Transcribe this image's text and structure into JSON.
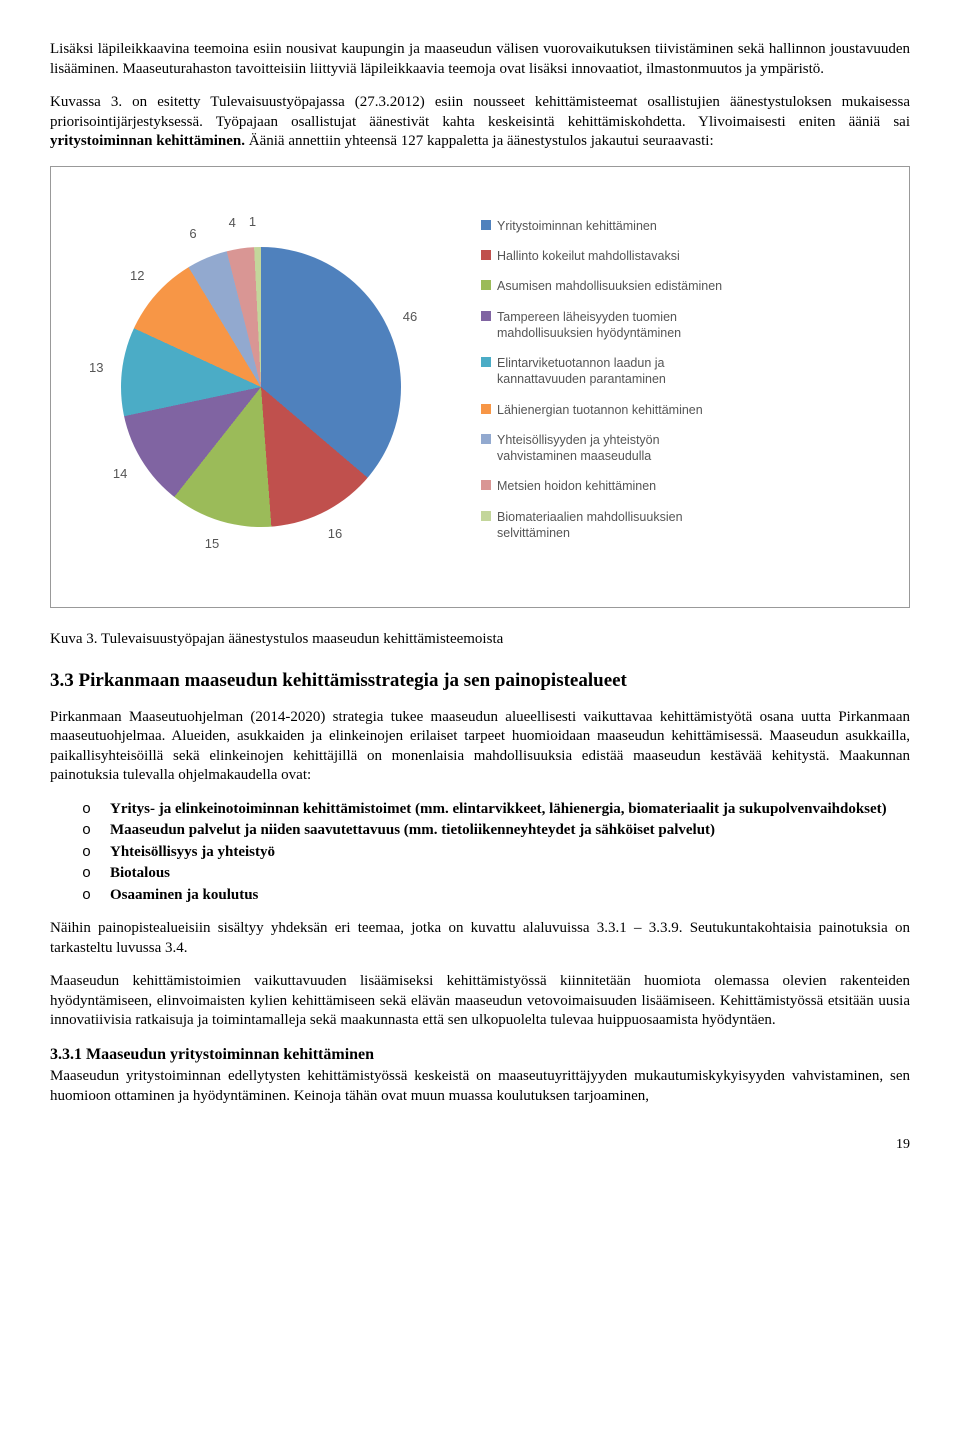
{
  "intro_para": "Lisäksi läpileikkaavina teemoina esiin nousivat kaupungin ja maaseudun välisen vuorovaikutuksen tiivistäminen sekä hallinnon joustavuuden lisääminen. Maaseuturahaston tavoitteisiin liittyviä läpileikkaavia teemoja ovat lisäksi innovaatiot, ilmastonmuutos ja ympäristö.",
  "intro_para2_pre": "Kuvassa 3. on esitetty Tulevaisuustyöpajassa (27.3.2012) esiin nousseet kehittämisteemat osallistujien äänestystuloksen mukaisessa priorisointijärjestyksessä. Työpajaan osallistujat äänestivät kahta keskeisintä kehittämiskohdetta. Ylivoimaisesti eniten ääniä sai ",
  "intro_para2_bold": "yritystoiminnan kehittäminen.",
  "intro_para2_post": " Ääniä annettiin yhteensä 127 kappaletta ja äänestystulos jakautui seuraavasti:",
  "chart": {
    "type": "pie",
    "total": 127,
    "background_color": "#ffffff",
    "border_color": "#999999",
    "label_font_family": "Arial",
    "label_fontsize": 13,
    "label_color": "#555555",
    "legend_fontsize": 12.5,
    "slices": [
      {
        "label": "Yritystoiminnan kehittäminen",
        "value": 46,
        "color": "#4f81bd"
      },
      {
        "label": "Hallinto kokeilut mahdollistavaksi",
        "value": 16,
        "color": "#c0504d"
      },
      {
        "label": "Asumisen mahdollisuuksien edistäminen",
        "value": 15,
        "color": "#9bbb59"
      },
      {
        "label": "Tampereen läheisyyden tuomien mahdollisuuksien hyödyntäminen",
        "value": 14,
        "color": "#8064a2"
      },
      {
        "label": "Elintarviketuotannon laadun ja kannattavuuden parantaminen",
        "value": 13,
        "color": "#4bacc6"
      },
      {
        "label": "Lähienergian tuotannon kehittäminen",
        "value": 12,
        "color": "#f79646"
      },
      {
        "label": "Yhteisöllisyyden ja yhteistyön vahvistaminen maaseudulla",
        "value": 6,
        "color": "#92a9cf"
      },
      {
        "label": "Metsien hoidon kehittäminen",
        "value": 4,
        "color": "#d99694"
      },
      {
        "label": "Biomateriaalien mahdollisuuksien selvittäminen",
        "value": 1,
        "color": "#c3d69b"
      }
    ]
  },
  "caption": "Kuva 3. Tulevaisuustyöpajan äänestystulos maaseudun kehittämisteemoista",
  "section_heading": "3.3 Pirkanmaan maaseudun kehittämisstrategia ja sen painopistealueet",
  "section_para1": "Pirkanmaan Maaseutuohjelman (2014-2020) strategia tukee maaseudun alueellisesti vaikuttavaa kehittämistyötä osana uutta Pirkanmaan maaseutuohjelmaa. Alueiden, asukkaiden  ja elinkeinojen erilaiset tarpeet huomioidaan maaseudun kehittämisessä. Maaseudun asukkailla, paikallisyhteisöillä sekä elinkeinojen kehittäjillä on monenlaisia mahdollisuuksia edistää maaseudun kestävää kehitystä. Maakunnan painotuksia tulevalla ohjelmakaudella ovat:",
  "focus_list": [
    "Yritys- ja elinkeinotoiminnan kehittämistoimet (mm. elintarvikkeet, lähienergia, biomateriaalit ja sukupolvenvaihdokset)",
    "Maaseudun palvelut ja niiden saavutettavuus (mm. tietoliikenneyhteydet ja sähköiset palvelut)",
    "Yhteisöllisyys ja yhteistyö",
    "Biotalous",
    "Osaaminen ja koulutus"
  ],
  "section_para2": "Näihin painopistealueisiin sisältyy yhdeksän eri teemaa, jotka on kuvattu alaluvuissa 3.3.1 – 3.3.9.  Seutukuntakohtaisia painotuksia on tarkasteltu luvussa 3.4.",
  "section_para3": "Maaseudun kehittämistoimien vaikuttavuuden lisäämiseksi kehittämistyössä kiinnitetään huomiota olemassa olevien rakenteiden hyödyntämiseen, elinvoimaisten kylien kehittämiseen sekä elävän maaseudun vetovoimaisuuden lisäämiseen. Kehittämistyössä etsitään uusia innovatiivisia ratkaisuja ja toimintamalleja sekä maakunnasta että sen ulkopuolelta tulevaa huippuosaamista hyödyntäen.",
  "subsection_heading": "3.3.1 Maaseudun yritystoiminnan kehittäminen",
  "subsection_para": "Maaseudun yritystoiminnan edellytysten kehittämistyössä keskeistä on maaseutuyrittäjyyden mukautumiskykyisyyden vahvistaminen, sen huomioon ottaminen ja hyödyntäminen. Keinoja tähän ovat muun muassa koulutuksen tarjoaminen,",
  "page_number": "19"
}
